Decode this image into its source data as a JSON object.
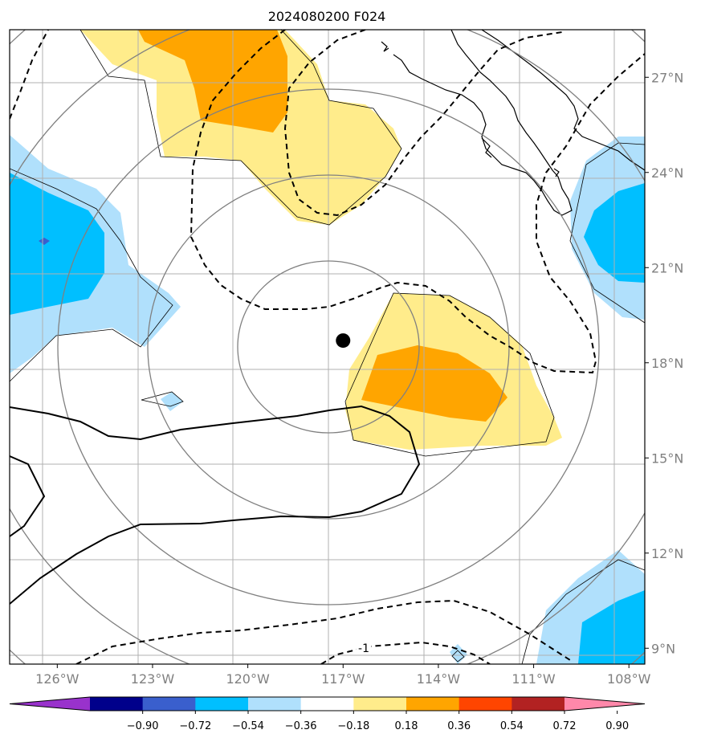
{
  "title": "2024080200 F024",
  "map": {
    "lon_range": [
      -127.5,
      -107.5
    ],
    "lat_range": [
      8.5,
      28.5
    ],
    "lat_ticks": [
      {
        "value": 9,
        "label": "9°N"
      },
      {
        "value": 12,
        "label": "12°N"
      },
      {
        "value": 15,
        "label": "15°N"
      },
      {
        "value": 18,
        "label": "18°N"
      },
      {
        "value": 21,
        "label": "21°N"
      },
      {
        "value": 24,
        "label": "24°N"
      },
      {
        "value": 27,
        "label": "27°N"
      }
    ],
    "lon_ticks": [
      {
        "value": -126,
        "label": "126°W"
      },
      {
        "value": -123,
        "label": "123°W"
      },
      {
        "value": -120,
        "label": "120°W"
      },
      {
        "value": -117,
        "label": "117°W"
      },
      {
        "value": -114,
        "label": "114°W"
      },
      {
        "value": -111,
        "label": "111°W"
      },
      {
        "value": -108,
        "label": "108°W"
      }
    ],
    "center_marker": {
      "lon": -117,
      "lat": 18.7
    },
    "contour_label": "-1"
  },
  "colorbar": {
    "ticks": [
      "−0.90",
      "−0.72",
      "−0.54",
      "−0.36",
      "−0.18",
      "0.18",
      "0.36",
      "0.54",
      "0.72",
      "0.90"
    ],
    "colors": [
      "#9932cc",
      "#00008b",
      "#3a5fcd",
      "#00bfff",
      "#b0e0fc",
      "#ffffff",
      "#ffec8b",
      "#ffa500",
      "#ff4500",
      "#b22222",
      "#ff88aa"
    ]
  }
}
